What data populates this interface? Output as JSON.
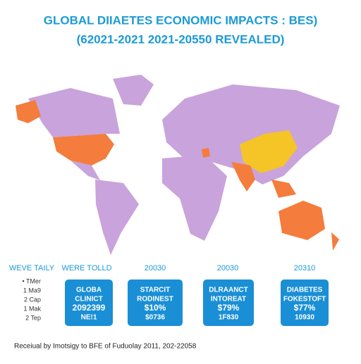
{
  "header": {
    "title": "GLOBAL DIIAETES ECONOMIC IMPACTS : BES)",
    "subtitle": "(62021-2021 2021-20550 REVEALED)"
  },
  "columns": [
    "WEVE TAILY",
    "WERE TOLLD",
    "20030",
    "20030",
    "20310"
  ],
  "legend": [
    "• TMer",
    "1 Ma9",
    "2 Cap",
    "1 Mak",
    "2 Tep"
  ],
  "cards": [
    {
      "lines": [
        "GLOBA",
        "CLINICT",
        "2092399",
        "NE!1"
      ]
    },
    {
      "lines": [
        "STARCIT",
        "RODINEST",
        "$10%",
        "$0736"
      ]
    },
    {
      "lines": [
        "DLRAANCT",
        "INTOREAT",
        "$79%",
        "1F830"
      ]
    },
    {
      "lines": [
        "DIABETES",
        "FOKESTOFT",
        "$77%",
        "10930"
      ]
    }
  ],
  "footer": "Receiual by Imotsigy to BFE of Fuduolay 2011, 202-22058"
}
